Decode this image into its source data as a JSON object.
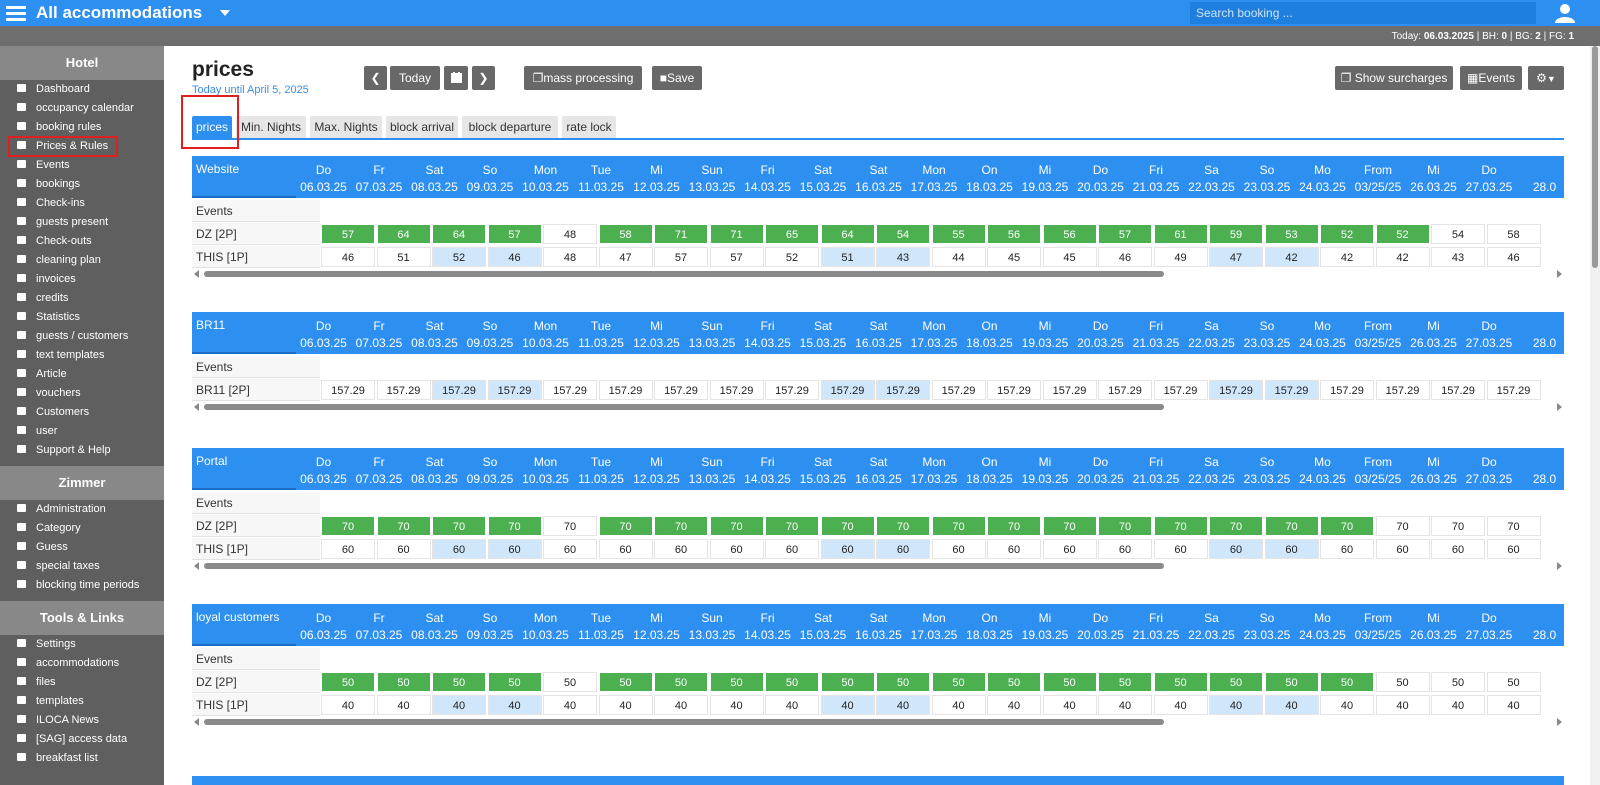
{
  "topbar": {
    "title": "All accommodations",
    "search_placeholder": "Search booking ..."
  },
  "statusbar": {
    "today_label": "Today:",
    "today_date": "06.03.2025",
    "bh_label": "| BH:",
    "bh": "0",
    "bg_label": "| BG:",
    "bg": "2",
    "fg_label": "| FG:",
    "fg": "1"
  },
  "sidebar": {
    "sections": [
      {
        "title": "Hotel",
        "items": [
          "Dashboard",
          "occupancy calendar",
          "booking rules",
          "Prices & Rules",
          "Events",
          "bookings",
          "Check-ins",
          "guests present",
          "Check-outs",
          "cleaning plan",
          "invoices",
          "credits",
          "Statistics",
          "guests / customers",
          "text templates",
          "Article",
          "vouchers",
          "Customers",
          "user",
          "Support & Help"
        ]
      },
      {
        "title": "Zimmer",
        "items": [
          "Administration",
          "Category",
          "Guess",
          "special taxes",
          "blocking time periods"
        ]
      },
      {
        "title": "Tools & Links",
        "items": [
          "Settings",
          "accommodations",
          "files",
          "templates",
          "ILOCA News",
          "[SAG] access data",
          "breakfast list"
        ]
      }
    ],
    "active_item": "Prices & Rules"
  },
  "page": {
    "title": "prices",
    "subtitle": "Today until April 5, 2025",
    "buttons": {
      "today": "Today",
      "mass": "mass processing",
      "save": "Save",
      "surcharges": "Show surcharges",
      "events": "Events"
    },
    "tabs": [
      "prices",
      "Min. Nights",
      "Max. Nights",
      "block arrival",
      "block departure",
      "rate lock"
    ],
    "active_tab": "prices"
  },
  "dates": [
    {
      "day": "Do",
      "date": "06.03.25"
    },
    {
      "day": "Fr",
      "date": "07.03.25"
    },
    {
      "day": "Sat",
      "date": "08.03.25"
    },
    {
      "day": "So",
      "date": "09.03.25"
    },
    {
      "day": "Mon",
      "date": "10.03.25"
    },
    {
      "day": "Tue",
      "date": "11.03.25"
    },
    {
      "day": "Mi",
      "date": "12.03.25"
    },
    {
      "day": "Sun",
      "date": "13.03.25"
    },
    {
      "day": "Fri",
      "date": "14.03.25"
    },
    {
      "day": "Sat",
      "date": "15.03.25"
    },
    {
      "day": "Sat",
      "date": "16.03.25"
    },
    {
      "day": "Mon",
      "date": "17.03.25"
    },
    {
      "day": "On",
      "date": "18.03.25"
    },
    {
      "day": "Mi",
      "date": "19.03.25"
    },
    {
      "day": "Do",
      "date": "20.03.25"
    },
    {
      "day": "Fri",
      "date": "21.03.25"
    },
    {
      "day": "Sa",
      "date": "22.03.25"
    },
    {
      "day": "So",
      "date": "23.03.25"
    },
    {
      "day": "Mo",
      "date": "24.03.25"
    },
    {
      "day": "From",
      "date": "03/25/25"
    },
    {
      "day": "Mi",
      "date": "26.03.25"
    },
    {
      "day": "Do",
      "date": "27.03.25"
    },
    {
      "day": "",
      "date": "28.0"
    }
  ],
  "tables": [
    {
      "name": "Website",
      "rows": [
        {
          "label": "Events",
          "values": []
        },
        {
          "label": "DZ [2P]",
          "values": [
            "57",
            "64",
            "64",
            "57",
            "48",
            "58",
            "71",
            "71",
            "65",
            "64",
            "54",
            "55",
            "56",
            "56",
            "57",
            "61",
            "59",
            "53",
            "52",
            "52",
            "54",
            "58"
          ],
          "green": [
            1,
            1,
            1,
            1,
            0,
            1,
            1,
            1,
            1,
            1,
            1,
            1,
            1,
            1,
            1,
            1,
            1,
            1,
            1,
            1,
            0,
            0
          ]
        },
        {
          "label": "THIS [1P]",
          "values": [
            "46",
            "51",
            "52",
            "46",
            "48",
            "47",
            "57",
            "57",
            "52",
            "51",
            "43",
            "44",
            "45",
            "45",
            "46",
            "49",
            "47",
            "42",
            "42",
            "42",
            "43",
            "46"
          ],
          "blue": [
            0,
            0,
            1,
            1,
            0,
            0,
            0,
            0,
            0,
            1,
            1,
            0,
            0,
            0,
            0,
            0,
            1,
            1,
            0,
            0,
            0,
            0
          ]
        }
      ]
    },
    {
      "name": "BR11",
      "rows": [
        {
          "label": "Events",
          "values": []
        },
        {
          "label": "BR11 [2P]",
          "values": [
            "157.29",
            "157.29",
            "157.29",
            "157.29",
            "157.29",
            "157.29",
            "157.29",
            "157.29",
            "157.29",
            "157.29",
            "157.29",
            "157.29",
            "157.29",
            "157.29",
            "157.29",
            "157.29",
            "157.29",
            "157.29",
            "157.29",
            "157.29",
            "157.29",
            "157.29"
          ],
          "blue": [
            0,
            0,
            1,
            1,
            0,
            0,
            0,
            0,
            0,
            1,
            1,
            0,
            0,
            0,
            0,
            0,
            1,
            1,
            0,
            0,
            0,
            0
          ]
        }
      ]
    },
    {
      "name": "Portal",
      "rows": [
        {
          "label": "Events",
          "values": []
        },
        {
          "label": "DZ [2P]",
          "values": [
            "70",
            "70",
            "70",
            "70",
            "70",
            "70",
            "70",
            "70",
            "70",
            "70",
            "70",
            "70",
            "70",
            "70",
            "70",
            "70",
            "70",
            "70",
            "70",
            "70",
            "70",
            "70"
          ],
          "green": [
            1,
            1,
            1,
            1,
            0,
            1,
            1,
            1,
            1,
            1,
            1,
            1,
            1,
            1,
            1,
            1,
            1,
            1,
            1,
            0,
            0,
            0
          ]
        },
        {
          "label": "THIS [1P]",
          "values": [
            "60",
            "60",
            "60",
            "60",
            "60",
            "60",
            "60",
            "60",
            "60",
            "60",
            "60",
            "60",
            "60",
            "60",
            "60",
            "60",
            "60",
            "60",
            "60",
            "60",
            "60",
            "60"
          ],
          "blue": [
            0,
            0,
            1,
            1,
            0,
            0,
            0,
            0,
            0,
            1,
            1,
            0,
            0,
            0,
            0,
            0,
            1,
            1,
            0,
            0,
            0,
            0
          ]
        }
      ]
    },
    {
      "name": "loyal customers",
      "rows": [
        {
          "label": "Events",
          "values": []
        },
        {
          "label": "DZ [2P]",
          "values": [
            "50",
            "50",
            "50",
            "50",
            "50",
            "50",
            "50",
            "50",
            "50",
            "50",
            "50",
            "50",
            "50",
            "50",
            "50",
            "50",
            "50",
            "50",
            "50",
            "50",
            "50",
            "50"
          ],
          "green": [
            1,
            1,
            1,
            1,
            0,
            1,
            1,
            1,
            1,
            1,
            1,
            1,
            1,
            1,
            1,
            1,
            1,
            1,
            1,
            0,
            0,
            0
          ]
        },
        {
          "label": "THIS [1P]",
          "values": [
            "40",
            "40",
            "40",
            "40",
            "40",
            "40",
            "40",
            "40",
            "40",
            "40",
            "40",
            "40",
            "40",
            "40",
            "40",
            "40",
            "40",
            "40",
            "40",
            "40",
            "40",
            "40"
          ],
          "blue": [
            0,
            0,
            1,
            1,
            0,
            0,
            0,
            0,
            0,
            1,
            1,
            0,
            0,
            0,
            0,
            0,
            1,
            1,
            0,
            0,
            0,
            0
          ]
        }
      ]
    }
  ],
  "colors": {
    "accent": "#2d8ff0",
    "green": "#4caf50",
    "weekend_blue": "#cfe6fb",
    "sidebar": "#5f5f5f",
    "highlight": "#e01f1f"
  }
}
